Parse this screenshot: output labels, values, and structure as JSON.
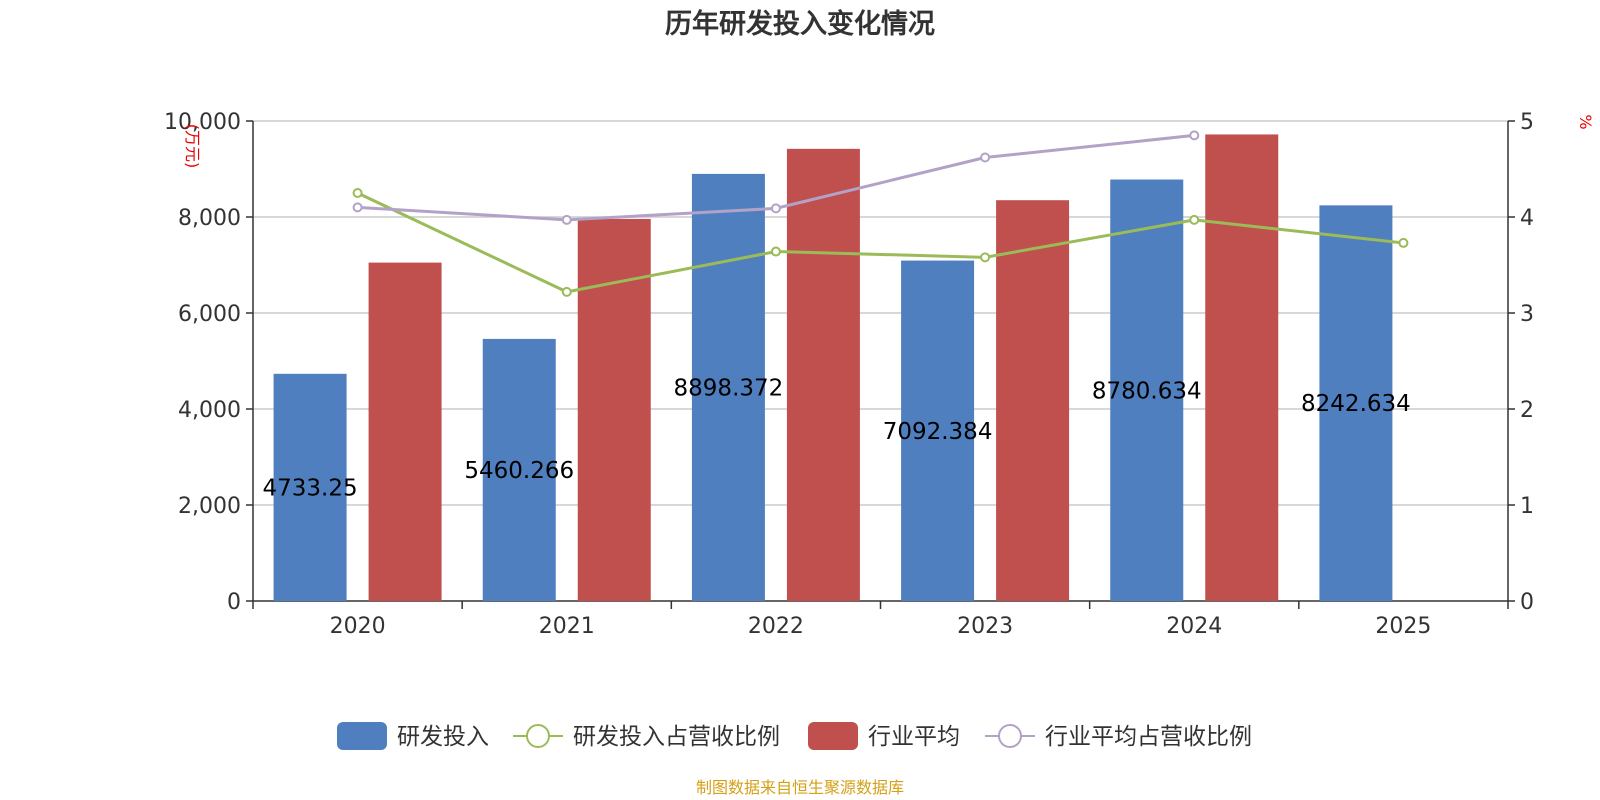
{
  "chart_data": {
    "type": "bar",
    "title": "历年研发投入变化情况",
    "categories": [
      "2020",
      "2021",
      "2022",
      "2023",
      "2024",
      "2025"
    ],
    "y_left": {
      "unit": "(万元)",
      "ylim": [
        0,
        10000
      ],
      "ticks": [
        0,
        2000,
        4000,
        6000,
        8000,
        10000
      ],
      "tick_labels": [
        "0",
        "2,000",
        "4,000",
        "6,000",
        "8,000",
        "10,000"
      ]
    },
    "y_right": {
      "unit": "%",
      "ylim": [
        0,
        5
      ],
      "ticks": [
        0,
        1,
        2,
        3,
        4,
        5
      ],
      "tick_labels": [
        "0",
        "1",
        "2",
        "3",
        "4",
        "5"
      ]
    },
    "grid": true,
    "legend_position": "bottom",
    "series": [
      {
        "name": "研发投入",
        "kind": "bar",
        "axis": "left",
        "color": "#4f7fbf",
        "values": [
          4733.25,
          5460.266,
          8898.372,
          7092.384,
          8780.634,
          8242.634
        ],
        "labels": [
          "4733.25",
          "5460.266",
          "8898.372",
          "7092.384",
          "8780.634",
          "8242.634"
        ]
      },
      {
        "name": "研发投入占营收比例",
        "kind": "line",
        "axis": "right",
        "color": "#9bbb59",
        "values": [
          4.25,
          3.22,
          3.64,
          3.58,
          3.97,
          3.73
        ]
      },
      {
        "name": "行业平均",
        "kind": "bar",
        "axis": "left",
        "color": "#c0504d",
        "values": [
          7050,
          7960,
          9420,
          8350,
          9720,
          null
        ]
      },
      {
        "name": "行业平均占营收比例",
        "kind": "line",
        "axis": "right",
        "color": "#b3a2c7",
        "values": [
          4.1,
          3.97,
          4.09,
          4.62,
          4.85,
          null
        ]
      }
    ]
  },
  "footer": {
    "source": "制图数据来自恒生聚源数据库"
  }
}
